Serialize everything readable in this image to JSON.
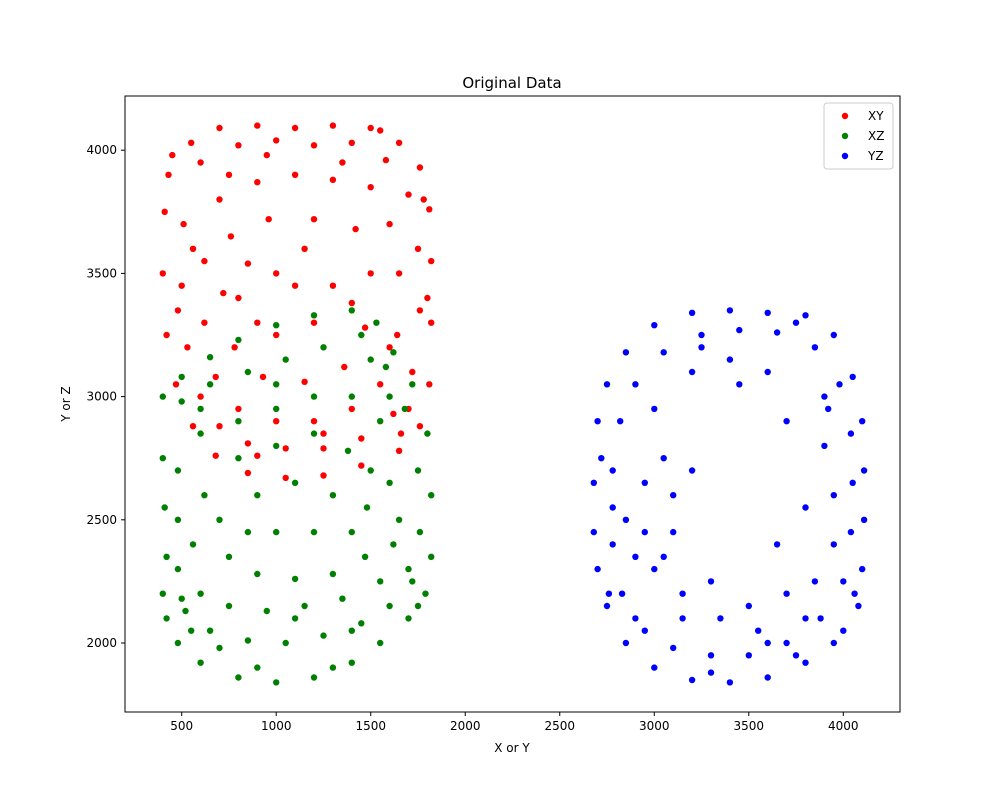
{
  "chart_data": {
    "type": "scatter",
    "title": "Original Data",
    "xlabel": "X or Y",
    "ylabel": "Y or Z",
    "xlim": [
      200,
      4300
    ],
    "ylim": [
      1720,
      4220
    ],
    "xticks": [
      500,
      1000,
      1500,
      2000,
      2500,
      3000,
      3500,
      4000
    ],
    "yticks": [
      2000,
      2500,
      3000,
      3500,
      4000
    ],
    "legend_position": "top-right",
    "series": [
      {
        "name": "XY",
        "color": "#ff0000",
        "points": [
          [
            450,
            3980
          ],
          [
            550,
            4030
          ],
          [
            700,
            4090
          ],
          [
            900,
            4100
          ],
          [
            1100,
            4090
          ],
          [
            1300,
            4100
          ],
          [
            1500,
            4090
          ],
          [
            1650,
            4030
          ],
          [
            1760,
            3930
          ],
          [
            1810,
            3760
          ],
          [
            1820,
            3550
          ],
          [
            1820,
            3300
          ],
          [
            1810,
            3050
          ],
          [
            1760,
            2880
          ],
          [
            1650,
            2780
          ],
          [
            1450,
            2720
          ],
          [
            1250,
            2680
          ],
          [
            1050,
            2670
          ],
          [
            850,
            2690
          ],
          [
            680,
            2760
          ],
          [
            560,
            2880
          ],
          [
            470,
            3050
          ],
          [
            420,
            3250
          ],
          [
            400,
            3500
          ],
          [
            410,
            3750
          ],
          [
            430,
            3900
          ],
          [
            600,
            3950
          ],
          [
            800,
            4020
          ],
          [
            1000,
            4040
          ],
          [
            1200,
            4020
          ],
          [
            1400,
            4030
          ],
          [
            1580,
            3960
          ],
          [
            1700,
            3820
          ],
          [
            1750,
            3600
          ],
          [
            1760,
            3350
          ],
          [
            1720,
            3100
          ],
          [
            1620,
            2930
          ],
          [
            1450,
            2830
          ],
          [
            1250,
            2790
          ],
          [
            1050,
            2790
          ],
          [
            850,
            2810
          ],
          [
            700,
            2880
          ],
          [
            600,
            3000
          ],
          [
            530,
            3200
          ],
          [
            500,
            3450
          ],
          [
            510,
            3700
          ],
          [
            700,
            3800
          ],
          [
            900,
            3870
          ],
          [
            1100,
            3900
          ],
          [
            1300,
            3880
          ],
          [
            1500,
            3850
          ],
          [
            1600,
            3700
          ],
          [
            1650,
            3500
          ],
          [
            1640,
            3250
          ],
          [
            1550,
            3050
          ],
          [
            1400,
            2950
          ],
          [
            1200,
            2900
          ],
          [
            1000,
            2900
          ],
          [
            800,
            2950
          ],
          [
            680,
            3080
          ],
          [
            620,
            3300
          ],
          [
            620,
            3550
          ],
          [
            760,
            3650
          ],
          [
            960,
            3720
          ],
          [
            1200,
            3720
          ],
          [
            1420,
            3680
          ],
          [
            1500,
            3500
          ],
          [
            1470,
            3280
          ],
          [
            1360,
            3120
          ],
          [
            1150,
            3060
          ],
          [
            930,
            3080
          ],
          [
            780,
            3200
          ],
          [
            720,
            3420
          ],
          [
            850,
            3540
          ],
          [
            1000,
            3500
          ],
          [
            1300,
            3450
          ],
          [
            1150,
            3600
          ],
          [
            900,
            3300
          ],
          [
            1200,
            3300
          ],
          [
            1400,
            3380
          ],
          [
            1000,
            3250
          ],
          [
            1100,
            3450
          ],
          [
            800,
            3400
          ],
          [
            1600,
            3200
          ],
          [
            1700,
            2950
          ],
          [
            480,
            3350
          ],
          [
            1350,
            3950
          ],
          [
            1550,
            4080
          ],
          [
            950,
            3980
          ],
          [
            750,
            3900
          ],
          [
            1800,
            3400
          ],
          [
            1780,
            3800
          ],
          [
            1660,
            2850
          ],
          [
            560,
            3600
          ],
          [
            1250,
            2850
          ],
          [
            900,
            2760
          ]
        ]
      },
      {
        "name": "XZ",
        "color": "#008000",
        "points": [
          [
            400,
            3000
          ],
          [
            500,
            3080
          ],
          [
            650,
            3160
          ],
          [
            800,
            3230
          ],
          [
            1000,
            3290
          ],
          [
            1200,
            3330
          ],
          [
            1400,
            3350
          ],
          [
            1530,
            3300
          ],
          [
            1620,
            3180
          ],
          [
            1720,
            3050
          ],
          [
            1800,
            2850
          ],
          [
            1820,
            2600
          ],
          [
            1820,
            2350
          ],
          [
            1790,
            2200
          ],
          [
            1700,
            2100
          ],
          [
            1550,
            2000
          ],
          [
            1400,
            1920
          ],
          [
            1200,
            1860
          ],
          [
            1000,
            1840
          ],
          [
            800,
            1860
          ],
          [
            600,
            1920
          ],
          [
            480,
            2000
          ],
          [
            420,
            2100
          ],
          [
            400,
            2200
          ],
          [
            420,
            2350
          ],
          [
            410,
            2550
          ],
          [
            400,
            2750
          ],
          [
            500,
            2980
          ],
          [
            650,
            3050
          ],
          [
            850,
            3100
          ],
          [
            1050,
            3150
          ],
          [
            1250,
            3200
          ],
          [
            1450,
            3250
          ],
          [
            1580,
            3120
          ],
          [
            1680,
            2950
          ],
          [
            1750,
            2700
          ],
          [
            1760,
            2450
          ],
          [
            1720,
            2250
          ],
          [
            1600,
            2150
          ],
          [
            1450,
            2080
          ],
          [
            1250,
            2030
          ],
          [
            1050,
            2000
          ],
          [
            850,
            2010
          ],
          [
            650,
            2050
          ],
          [
            520,
            2130
          ],
          [
            480,
            2300
          ],
          [
            480,
            2500
          ],
          [
            480,
            2700
          ],
          [
            600,
            2850
          ],
          [
            800,
            2900
          ],
          [
            1000,
            2950
          ],
          [
            1200,
            3000
          ],
          [
            1400,
            3000
          ],
          [
            1550,
            2900
          ],
          [
            1600,
            2650
          ],
          [
            1620,
            2400
          ],
          [
            1550,
            2250
          ],
          [
            1350,
            2180
          ],
          [
            1150,
            2150
          ],
          [
            950,
            2130
          ],
          [
            750,
            2150
          ],
          [
            600,
            2200
          ],
          [
            560,
            2400
          ],
          [
            620,
            2600
          ],
          [
            800,
            2750
          ],
          [
            1000,
            2800
          ],
          [
            1200,
            2850
          ],
          [
            1380,
            2780
          ],
          [
            1480,
            2550
          ],
          [
            1470,
            2350
          ],
          [
            1300,
            2280
          ],
          [
            1100,
            2260
          ],
          [
            900,
            2280
          ],
          [
            750,
            2350
          ],
          [
            700,
            2500
          ],
          [
            900,
            2600
          ],
          [
            1100,
            2650
          ],
          [
            1300,
            2600
          ],
          [
            1400,
            2450
          ],
          [
            1200,
            2450
          ],
          [
            1000,
            2450
          ],
          [
            850,
            2450
          ],
          [
            1600,
            3000
          ],
          [
            1700,
            2300
          ],
          [
            1650,
            2500
          ],
          [
            1500,
            2700
          ],
          [
            1750,
            2150
          ],
          [
            1300,
            1900
          ],
          [
            900,
            1900
          ],
          [
            700,
            1980
          ],
          [
            500,
            2180
          ],
          [
            1500,
            3150
          ],
          [
            1000,
            3050
          ],
          [
            600,
            2950
          ],
          [
            1100,
            2100
          ],
          [
            1400,
            2050
          ],
          [
            550,
            2050
          ]
        ]
      },
      {
        "name": "YZ",
        "color": "#0000ff",
        "points": [
          [
            2680,
            2650
          ],
          [
            2700,
            2900
          ],
          [
            2750,
            3050
          ],
          [
            2850,
            3180
          ],
          [
            3000,
            3290
          ],
          [
            3200,
            3340
          ],
          [
            3400,
            3350
          ],
          [
            3600,
            3340
          ],
          [
            3800,
            3330
          ],
          [
            3950,
            3250
          ],
          [
            4050,
            3080
          ],
          [
            4100,
            2900
          ],
          [
            4110,
            2700
          ],
          [
            4110,
            2500
          ],
          [
            4100,
            2300
          ],
          [
            4080,
            2150
          ],
          [
            3950,
            2000
          ],
          [
            3800,
            1920
          ],
          [
            3600,
            1860
          ],
          [
            3400,
            1840
          ],
          [
            3200,
            1850
          ],
          [
            3000,
            1900
          ],
          [
            2850,
            2000
          ],
          [
            2750,
            2150
          ],
          [
            2700,
            2300
          ],
          [
            2680,
            2450
          ],
          [
            2780,
            2700
          ],
          [
            2820,
            2900
          ],
          [
            2900,
            3050
          ],
          [
            3050,
            3180
          ],
          [
            3250,
            3250
          ],
          [
            3450,
            3270
          ],
          [
            3650,
            3260
          ],
          [
            3850,
            3200
          ],
          [
            3980,
            3050
          ],
          [
            4040,
            2850
          ],
          [
            4050,
            2650
          ],
          [
            4040,
            2450
          ],
          [
            4000,
            2250
          ],
          [
            3880,
            2100
          ],
          [
            3700,
            2000
          ],
          [
            3500,
            1950
          ],
          [
            3300,
            1950
          ],
          [
            3100,
            1980
          ],
          [
            2950,
            2050
          ],
          [
            2830,
            2200
          ],
          [
            2780,
            2400
          ],
          [
            2780,
            2550
          ],
          [
            2950,
            2450
          ],
          [
            3100,
            2600
          ],
          [
            2950,
            2650
          ],
          [
            3050,
            2750
          ],
          [
            3200,
            2700
          ],
          [
            2900,
            2350
          ],
          [
            3000,
            2300
          ],
          [
            3150,
            2200
          ],
          [
            3300,
            2250
          ],
          [
            3500,
            2150
          ],
          [
            3700,
            2200
          ],
          [
            3850,
            2250
          ],
          [
            3950,
            2400
          ],
          [
            3950,
            2600
          ],
          [
            3900,
            2800
          ],
          [
            3700,
            2900
          ],
          [
            3600,
            3100
          ],
          [
            3400,
            3150
          ],
          [
            3200,
            3100
          ],
          [
            3000,
            2950
          ],
          [
            2850,
            2500
          ],
          [
            3100,
            2450
          ],
          [
            3650,
            2400
          ],
          [
            3800,
            2550
          ],
          [
            3900,
            3000
          ],
          [
            4060,
            2200
          ],
          [
            3750,
            1950
          ],
          [
            3300,
            1880
          ],
          [
            2900,
            2100
          ],
          [
            3450,
            3050
          ],
          [
            3250,
            3200
          ],
          [
            3750,
            3300
          ],
          [
            3550,
            2050
          ],
          [
            3350,
            2100
          ],
          [
            3150,
            2100
          ],
          [
            4000,
            2050
          ],
          [
            3920,
            2950
          ],
          [
            2720,
            2750
          ],
          [
            2760,
            2200
          ],
          [
            3050,
            2350
          ],
          [
            3600,
            2000
          ],
          [
            3800,
            2100
          ]
        ]
      }
    ]
  }
}
